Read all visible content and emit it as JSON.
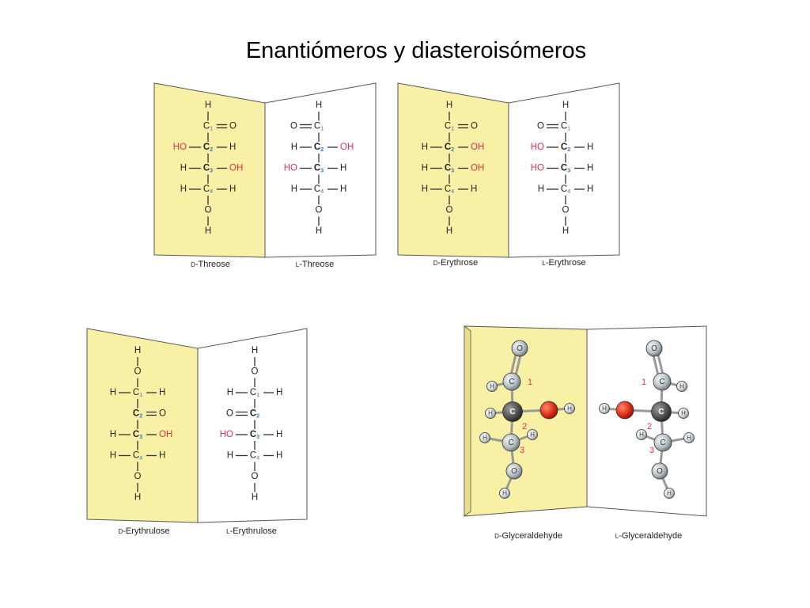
{
  "title": "Enantiómeros y diasteroisómeros",
  "colors": {
    "panel_left": "#f8f0a4",
    "panel_right": "#ffffff",
    "chiral_red": "#e0304e",
    "label_blue": "#3a78c8",
    "oxygen_red": "#e0301a"
  },
  "panels": [
    {
      "left_label": {
        "prefix": "D",
        "name": "-Threose"
      },
      "right_label": {
        "prefix": "L",
        "name": "-Threose"
      },
      "left_rows": [
        [
          "",
          "H",
          ""
        ],
        [
          "",
          "C1",
          "O"
        ],
        [
          "HO",
          "C2",
          "H"
        ],
        [
          "H",
          "C3",
          "OH"
        ],
        [
          "H",
          "C4",
          "H"
        ],
        [
          "",
          "O",
          ""
        ],
        [
          "",
          "H",
          ""
        ]
      ],
      "right_rows": [
        [
          "",
          "H",
          ""
        ],
        [
          "O",
          "C1",
          ""
        ],
        [
          "H",
          "C2",
          "OH"
        ],
        [
          "HO",
          "C3",
          "H"
        ],
        [
          "H",
          "C4",
          "H"
        ],
        [
          "",
          "O",
          ""
        ],
        [
          "",
          "H",
          ""
        ]
      ]
    },
    {
      "left_label": {
        "prefix": "D",
        "name": "-Erythrose"
      },
      "right_label": {
        "prefix": "L",
        "name": "-Erythrose"
      },
      "left_rows": [
        [
          "",
          "H",
          ""
        ],
        [
          "",
          "C1",
          "O"
        ],
        [
          "H",
          "C2",
          "OH"
        ],
        [
          "H",
          "C3",
          "OH"
        ],
        [
          "H",
          "C4",
          "H"
        ],
        [
          "",
          "O",
          ""
        ],
        [
          "",
          "H",
          ""
        ]
      ],
      "right_rows": [
        [
          "",
          "H",
          ""
        ],
        [
          "O",
          "C1",
          ""
        ],
        [
          "HO",
          "C2",
          "H"
        ],
        [
          "HO",
          "C3",
          "H"
        ],
        [
          "H",
          "C4",
          "H"
        ],
        [
          "",
          "O",
          ""
        ],
        [
          "",
          "H",
          ""
        ]
      ]
    },
    {
      "left_label": {
        "prefix": "D",
        "name": "-Erythrulose"
      },
      "right_label": {
        "prefix": "L",
        "name": "-Erythrulose"
      },
      "left_rows": [
        [
          "",
          "H",
          ""
        ],
        [
          "",
          "O",
          ""
        ],
        [
          "H",
          "C1",
          "H"
        ],
        [
          "",
          "C2",
          "O"
        ],
        [
          "H",
          "C3",
          "OH"
        ],
        [
          "H",
          "C4",
          "H"
        ],
        [
          "",
          "O",
          ""
        ],
        [
          "",
          "H",
          ""
        ]
      ],
      "right_rows": [
        [
          "",
          "H",
          ""
        ],
        [
          "",
          "O",
          ""
        ],
        [
          "H",
          "C1",
          "H"
        ],
        [
          "O",
          "C2",
          ""
        ],
        [
          "HO",
          "C3",
          "H"
        ],
        [
          "H",
          "C4",
          "H"
        ],
        [
          "",
          "O",
          ""
        ],
        [
          "",
          "H",
          ""
        ]
      ]
    },
    {
      "left_label": {
        "prefix": "D",
        "name": "-Glyceraldehyde"
      },
      "right_label": {
        "prefix": "L",
        "name": "-Glyceraldehyde"
      },
      "atoms": {
        "carbon": "C",
        "oxygen": "O",
        "hydrogen": "H"
      },
      "carbon_numbers": [
        "1",
        "2",
        "3"
      ]
    }
  ]
}
